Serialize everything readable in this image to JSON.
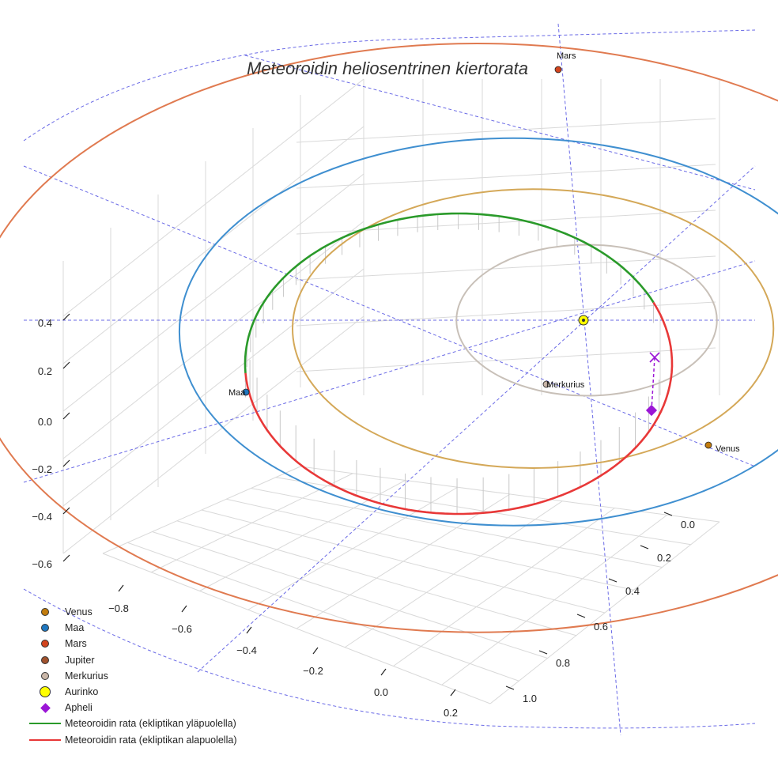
{
  "chart_data": {
    "type": "3d-orbit",
    "title": "Meteoroidin heliosentrinen kiertorata",
    "axes": {
      "x_ticks": [
        "−0.8",
        "−0.6",
        "−0.4",
        "−0.2",
        "0.0",
        "0.2"
      ],
      "y_ticks": [
        "0.0",
        "0.2",
        "0.4",
        "0.6",
        "0.8",
        "1.0"
      ],
      "z_ticks": [
        "0.4",
        "0.2",
        "0.0",
        "−0.2",
        "−0.4",
        "−0.6"
      ]
    },
    "orbits_au": [
      {
        "name": "Merkurius",
        "a": 0.39,
        "color": "#c8c0b8"
      },
      {
        "name": "Venus",
        "a": 0.72,
        "color": "#d4a858"
      },
      {
        "name": "Maa",
        "a": 1.0,
        "color": "#3f8fd0"
      },
      {
        "name": "Mars",
        "a": 1.52,
        "color": "#e07a50"
      }
    ],
    "planets": [
      {
        "name": "Mars",
        "label": "Mars",
        "color": "#d2441e"
      },
      {
        "name": "Maa",
        "label": "Maa",
        "color": "#1f77c0"
      },
      {
        "name": "Venus",
        "label": "Venus",
        "color": "#c27c0e"
      },
      {
        "name": "Merkurius",
        "label": "Merkurius",
        "color": "#c9b6a8"
      },
      {
        "name": "Aurinko",
        "label": "",
        "color": "#ffff00"
      }
    ],
    "meteoroid": {
      "above_ecliptic_color": "#2a9a2a",
      "below_ecliptic_color": "#e83838",
      "aphelion_color": "#9b16d6"
    },
    "legend": [
      {
        "label": "Venus",
        "kind": "dot",
        "color": "#c27c0e"
      },
      {
        "label": "Maa",
        "kind": "dot",
        "color": "#1f77c0"
      },
      {
        "label": "Mars",
        "kind": "dot",
        "color": "#d2441e"
      },
      {
        "label": "Jupiter",
        "kind": "dot",
        "color": "#a0522d"
      },
      {
        "label": "Merkurius",
        "kind": "dot",
        "color": "#c9b6a8"
      },
      {
        "label": "Aurinko",
        "kind": "bigdot",
        "color": "#ffff00"
      },
      {
        "label": "Apheli",
        "kind": "diamond",
        "color": "#9b16d6"
      },
      {
        "label": "Meteoroidin rata (ekliptikan yläpuolella)",
        "kind": "line",
        "color": "#2a9a2a"
      },
      {
        "label": "Meteoroidin rata (ekliptikan alapuolella)",
        "kind": "line",
        "color": "#e83838"
      }
    ]
  }
}
